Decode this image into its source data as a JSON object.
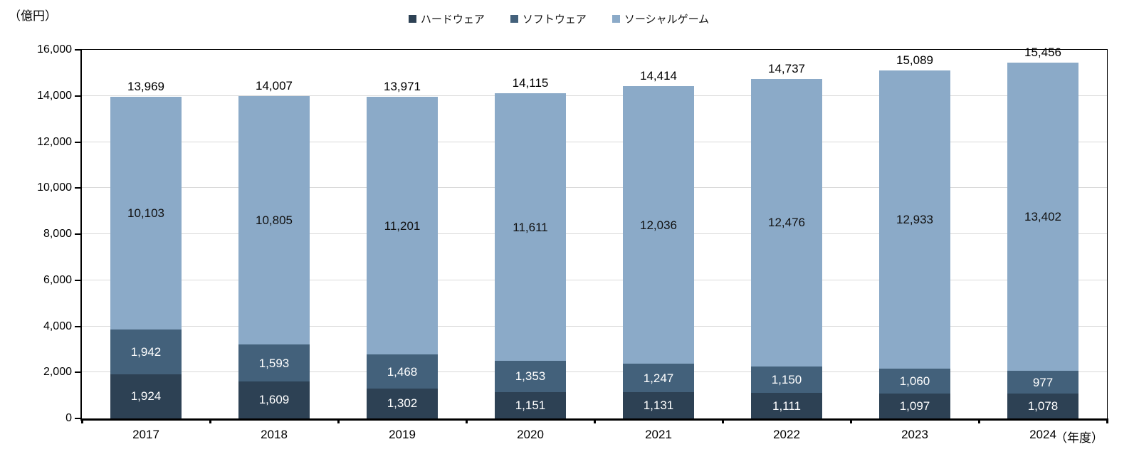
{
  "chart": {
    "unit_label": "（億円）",
    "x_axis_suffix": "（年度）"
  },
  "chart_data": {
    "type": "bar",
    "stacked": true,
    "title": "",
    "categories": [
      "2017",
      "2018",
      "2019",
      "2020",
      "2021",
      "2022",
      "2023",
      "2024"
    ],
    "series": [
      {
        "name": "ハードウェア",
        "color": "#2d4154",
        "label_color": "#ffffff",
        "values": [
          1924,
          1609,
          1302,
          1151,
          1131,
          1111,
          1097,
          1078
        ]
      },
      {
        "name": "ソフトウェア",
        "color": "#43617b",
        "label_color": "#ffffff",
        "values": [
          1942,
          1593,
          1468,
          1353,
          1247,
          1150,
          1060,
          977
        ]
      },
      {
        "name": "ソーシャルゲーム",
        "color": "#8baac8",
        "label_color": "#111111",
        "values": [
          10103,
          10805,
          11201,
          11611,
          12036,
          12476,
          12933,
          13402
        ]
      }
    ],
    "totals": [
      13969,
      14007,
      13971,
      14115,
      14414,
      14737,
      15089,
      15456
    ],
    "ylim": [
      0,
      16000
    ],
    "y_tick_step": 2000,
    "y_tick_labels": [
      "0",
      "2,000",
      "4,000",
      "6,000",
      "8,000",
      "10,000",
      "12,000",
      "14,000",
      "16,000"
    ],
    "ylabel": "（億円）",
    "xlabel": "（年度）",
    "legend_position": "top",
    "grid": true
  }
}
